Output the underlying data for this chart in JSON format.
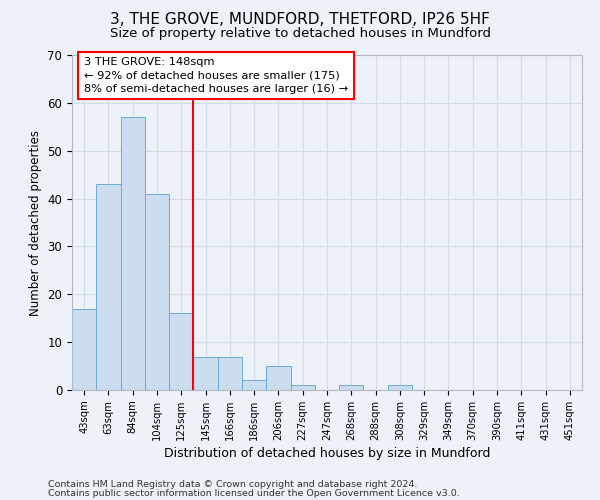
{
  "title": "3, THE GROVE, MUNDFORD, THETFORD, IP26 5HF",
  "subtitle": "Size of property relative to detached houses in Mundford",
  "xlabel": "Distribution of detached houses by size in Mundford",
  "ylabel": "Number of detached properties",
  "footnote1": "Contains HM Land Registry data © Crown copyright and database right 2024.",
  "footnote2": "Contains public sector information licensed under the Open Government Licence v3.0.",
  "categories": [
    "43sqm",
    "63sqm",
    "84sqm",
    "104sqm",
    "125sqm",
    "145sqm",
    "166sqm",
    "186sqm",
    "206sqm",
    "227sqm",
    "247sqm",
    "268sqm",
    "288sqm",
    "308sqm",
    "329sqm",
    "349sqm",
    "370sqm",
    "390sqm",
    "411sqm",
    "431sqm",
    "451sqm"
  ],
  "values": [
    17,
    43,
    57,
    41,
    16,
    7,
    7,
    2,
    5,
    1,
    0,
    1,
    0,
    1,
    0,
    0,
    0,
    0,
    0,
    0,
    0
  ],
  "bar_color": "#ccddf0",
  "bar_edge_color": "#6aaad4",
  "grid_color": "#d0dcea",
  "background_color": "#edf2f9",
  "red_line_index": 5,
  "annotation_line1": "3 THE GROVE: 148sqm",
  "annotation_line2": "← 92% of detached houses are smaller (175)",
  "annotation_line3": "8% of semi-detached houses are larger (16) →",
  "annotation_box_color": "white",
  "annotation_box_edge_color": "red",
  "ylim": [
    0,
    70
  ],
  "yticks": [
    0,
    10,
    20,
    30,
    40,
    50,
    60,
    70
  ],
  "title_fontsize": 11,
  "subtitle_fontsize": 9.5
}
